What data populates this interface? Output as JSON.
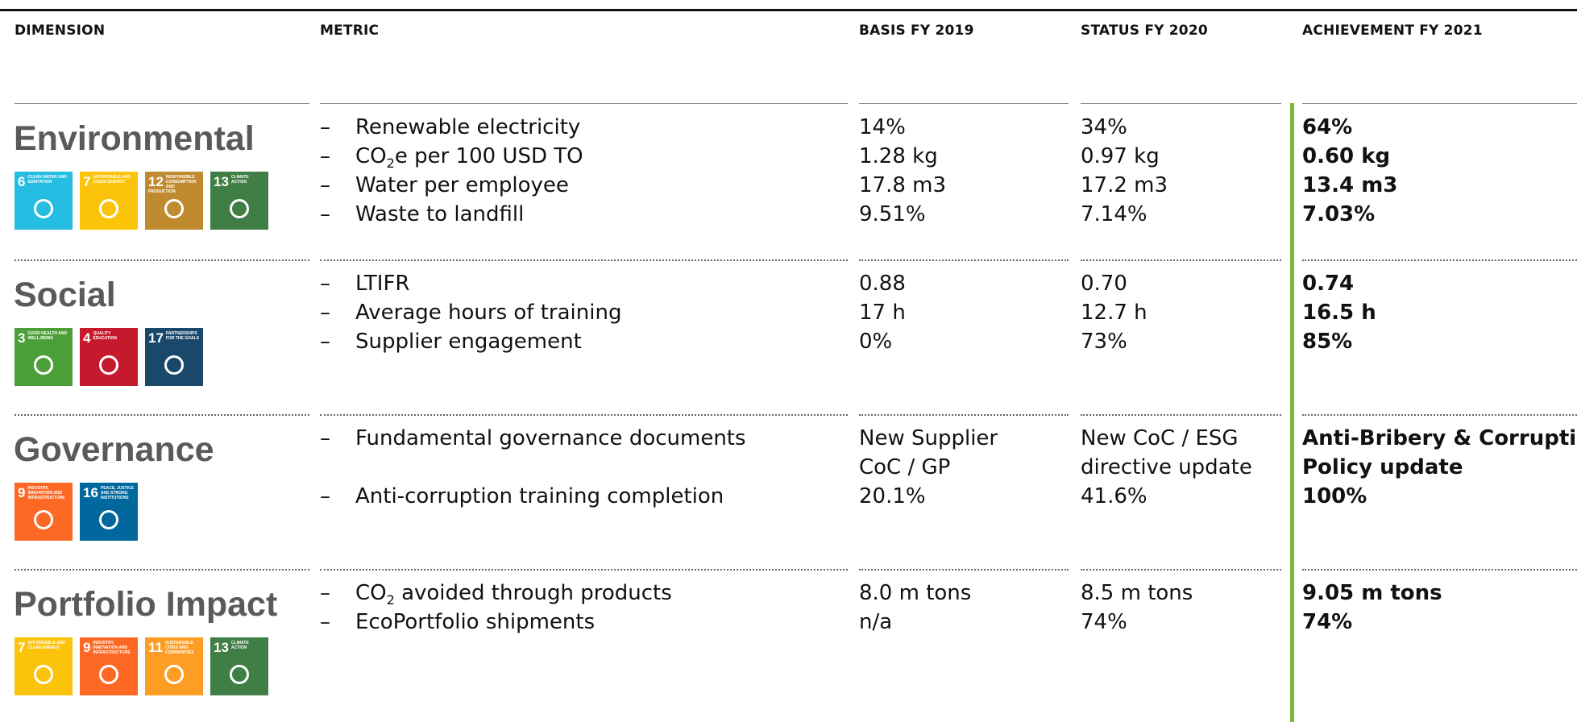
{
  "bullet": "–",
  "header": [
    "DIMENSION",
    "METRIC",
    "BASIS FY 2019",
    "STATUS FY 2020",
    "ACHIEVEMENT FY 2021"
  ],
  "sections": [
    {
      "dimension": "Environmental",
      "sdgs": [
        {
          "number": "6",
          "label": "CLEAN WATER AND SANITATION",
          "color": "#26bde2"
        },
        {
          "number": "7",
          "label": "AFFORDABLE AND CLEAN ENERGY",
          "color": "#fcc30b"
        },
        {
          "number": "12",
          "label": "RESPONSIBLE CONSUMPTION AND PRODUCTION",
          "color": "#bf8b2e"
        },
        {
          "number": "13",
          "label": "CLIMATE ACTION",
          "color": "#3f7e44"
        }
      ],
      "rows": [
        {
          "metric": {
            "text": "Renewable electricity"
          },
          "basis": [
            "14%"
          ],
          "status": [
            "34%"
          ],
          "achievement": [
            "64%"
          ]
        },
        {
          "metric": {
            "text": "CO",
            "sub": "2",
            "rest": "e per 100 USD TO"
          },
          "basis": [
            "1.28 kg"
          ],
          "status": [
            "0.97 kg"
          ],
          "achievement": [
            "0.60 kg"
          ]
        },
        {
          "metric": {
            "text": "Water per employee"
          },
          "basis": [
            "17.8 m3"
          ],
          "status": [
            "17.2 m3"
          ],
          "achievement": [
            "13.4 m3"
          ]
        },
        {
          "metric": {
            "text": "Waste to landfill"
          },
          "basis": [
            "9.51%"
          ],
          "status": [
            "7.14%"
          ],
          "achievement": [
            "7.03%"
          ]
        }
      ]
    },
    {
      "dimension": "Social",
      "sdgs": [
        {
          "number": "3",
          "label": "GOOD HEALTH AND WELL-BEING",
          "color": "#4c9f38"
        },
        {
          "number": "4",
          "label": "QUALITY EDUCATION",
          "color": "#c5192d"
        },
        {
          "number": "17",
          "label": "PARTNERSHIPS FOR THE GOALS",
          "color": "#19486a"
        }
      ],
      "rows": [
        {
          "metric": {
            "text": "LTIFR"
          },
          "basis": [
            "0.88"
          ],
          "status": [
            "0.70"
          ],
          "achievement": [
            "0.74"
          ]
        },
        {
          "metric": {
            "text": "Average hours of training"
          },
          "basis": [
            "17 h"
          ],
          "status": [
            "12.7 h"
          ],
          "achievement": [
            "16.5 h"
          ]
        },
        {
          "metric": {
            "text": "Supplier engagement"
          },
          "basis": [
            "0%"
          ],
          "status": [
            "73%"
          ],
          "achievement": [
            "85%"
          ]
        }
      ]
    },
    {
      "dimension": "Governance",
      "sdgs": [
        {
          "number": "9",
          "label": "INDUSTRY, INNOVATION AND INFRASTRUCTURE",
          "color": "#fd6925"
        },
        {
          "number": "16",
          "label": "PEACE, JUSTICE AND STRONG INSTITUTIONS",
          "color": "#00689d"
        }
      ],
      "rows": [
        {
          "metric": {
            "text": "Fundamental governance documents"
          },
          "basis": [
            "New Supplier",
            "CoC / GP"
          ],
          "status": [
            "New CoC / ESG",
            "directive update"
          ],
          "achievement": [
            "Anti-Bribery & Corruption",
            "Policy update"
          ]
        },
        {
          "metric": {
            "text": "Anti-corruption training completion"
          },
          "basis": [
            "20.1%"
          ],
          "status": [
            "41.6%"
          ],
          "achievement": [
            "100%"
          ]
        }
      ]
    },
    {
      "dimension": "Portfolio Impact",
      "sdgs": [
        {
          "number": "7",
          "label": "AFFORDABLE AND CLEAN ENERGY",
          "color": "#fcc30b"
        },
        {
          "number": "9",
          "label": "INDUSTRY, INNOVATION AND INFRASTRUCTURE",
          "color": "#fd6925"
        },
        {
          "number": "11",
          "label": "SUSTAINABLE CITIES AND COMMUNITIES",
          "color": "#fd9d24"
        },
        {
          "number": "13",
          "label": "CLIMATE ACTION",
          "color": "#3f7e44"
        }
      ],
      "rows": [
        {
          "metric": {
            "text": "CO",
            "sub": "2",
            "rest": " avoided through products"
          },
          "basis": [
            "8.0 m tons"
          ],
          "status": [
            "8.5 m tons"
          ],
          "achievement": [
            "9.05 m tons"
          ]
        },
        {
          "metric": {
            "text": "EcoPortfolio shipments"
          },
          "basis": [
            "n/a"
          ],
          "status": [
            "74%"
          ],
          "achievement": [
            "74%"
          ]
        }
      ]
    }
  ]
}
